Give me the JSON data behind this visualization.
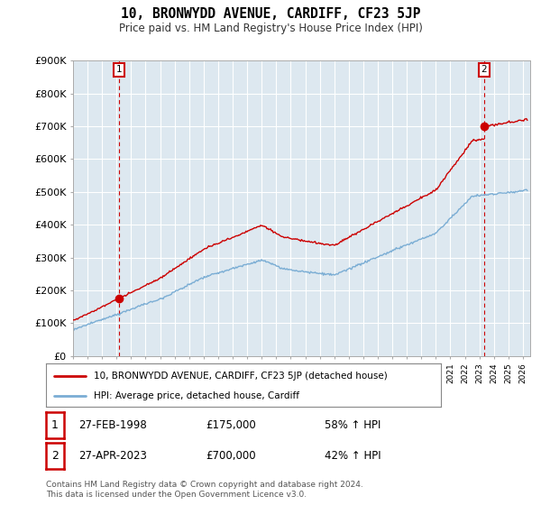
{
  "title": "10, BRONWYDD AVENUE, CARDIFF, CF23 5JP",
  "subtitle": "Price paid vs. HM Land Registry's House Price Index (HPI)",
  "ylabel_ticks": [
    "£0",
    "£100K",
    "£200K",
    "£300K",
    "£400K",
    "£500K",
    "£600K",
    "£700K",
    "£800K",
    "£900K"
  ],
  "ylim": [
    0,
    900000
  ],
  "xlim_start": 1995,
  "xlim_end": 2026.5,
  "hpi_color": "#7aadd4",
  "price_color": "#cc0000",
  "sale1_year": 1998.16,
  "sale1_price": 175000,
  "sale1_date": "27-FEB-1998",
  "sale1_label": "58% ↑ HPI",
  "sale2_year": 2023.33,
  "sale2_price": 700000,
  "sale2_date": "27-APR-2023",
  "sale2_label": "42% ↑ HPI",
  "legend_line1": "10, BRONWYDD AVENUE, CARDIFF, CF23 5JP (detached house)",
  "legend_line2": "HPI: Average price, detached house, Cardiff",
  "footnote": "Contains HM Land Registry data © Crown copyright and database right 2024.\nThis data is licensed under the Open Government Licence v3.0.",
  "chart_bg_color": "#dde8f0",
  "fig_bg_color": "#ffffff",
  "grid_color": "#ffffff"
}
